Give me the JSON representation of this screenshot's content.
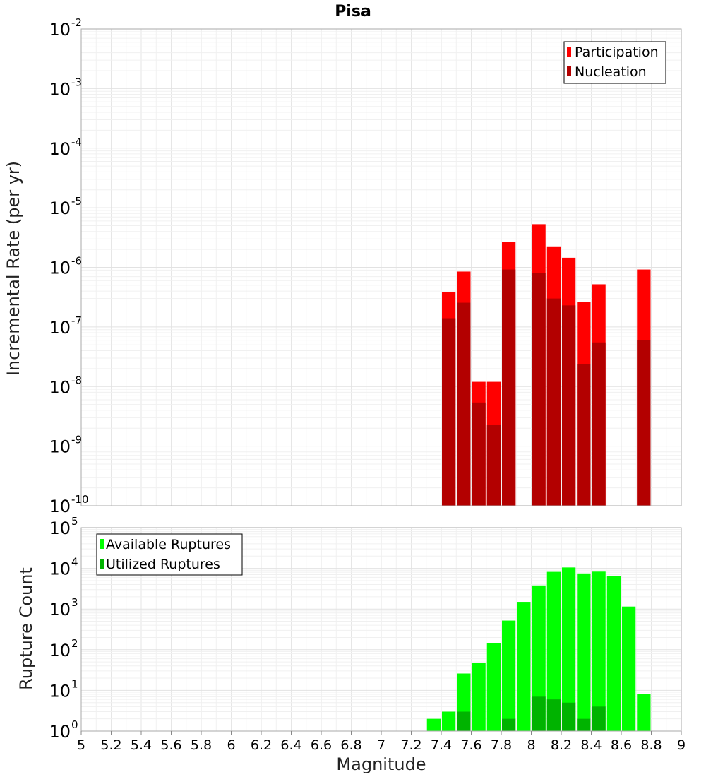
{
  "chart_data": [
    {
      "type": "bar",
      "title": "Pisa",
      "ylabel": "Incremental Rate (per yr)",
      "xlabel": "",
      "xlim": [
        5,
        9
      ],
      "ylim": [
        1e-10,
        0.01
      ],
      "yscale": "log",
      "ytick_exponents": [
        -10,
        -9,
        -8,
        -7,
        -6,
        -5,
        -4,
        -3,
        -2
      ],
      "grid": true,
      "legend_placement": "top-right",
      "bar_width": 0.1,
      "colors": {
        "participation": "#ff0000",
        "nucleation": "#b30000"
      },
      "x": [
        7.45,
        7.55,
        7.65,
        7.75,
        7.85,
        8.05,
        8.15,
        8.25,
        8.35,
        8.45,
        8.75
      ],
      "series": [
        {
          "name": "Participation",
          "values": [
            3.8e-07,
            8.5e-07,
            1.2e-08,
            1.2e-08,
            2.7e-06,
            5.3e-06,
            2.25e-06,
            1.45e-06,
            2.6e-07,
            5.2e-07,
            9.2e-07
          ]
        },
        {
          "name": "Nucleation",
          "values": [
            1.4e-07,
            2.55e-07,
            5.4e-09,
            2.3e-09,
            9.2e-07,
            8.1e-07,
            3e-07,
            2.3e-07,
            2.4e-08,
            5.5e-08,
            6e-08
          ]
        }
      ]
    },
    {
      "type": "bar",
      "title": "",
      "ylabel": "Rupture Count",
      "xlabel": "Magnitude",
      "xlim": [
        5,
        9
      ],
      "ylim": [
        1,
        100000
      ],
      "yscale": "log",
      "ytick_exponents": [
        0,
        1,
        2,
        3,
        4,
        5
      ],
      "xticks": [
        "5",
        "5.2",
        "5.4",
        "5.6",
        "5.8",
        "6",
        "6.2",
        "6.4",
        "6.6",
        "6.8",
        "7",
        "7.2",
        "7.4",
        "7.6",
        "7.8",
        "8",
        "8.2",
        "8.4",
        "8.6",
        "8.8",
        "9"
      ],
      "grid": true,
      "legend_placement": "top-left",
      "bar_width": 0.1,
      "colors": {
        "available": "#00ff00",
        "utilized": "#00b300"
      },
      "x": [
        7.35,
        7.45,
        7.55,
        7.65,
        7.75,
        7.85,
        7.95,
        8.05,
        8.15,
        8.25,
        8.35,
        8.45,
        8.55,
        8.65,
        8.75
      ],
      "series": [
        {
          "name": "Available Ruptures",
          "values": [
            2,
            3,
            26,
            48,
            145,
            520,
            1500,
            3800,
            8200,
            10500,
            7500,
            8300,
            6600,
            1150,
            8
          ]
        },
        {
          "name": "Utilized Ruptures",
          "values": [
            null,
            1,
            3,
            1,
            1,
            2,
            null,
            7,
            6,
            5,
            2,
            4,
            1,
            null,
            1
          ]
        }
      ]
    }
  ]
}
